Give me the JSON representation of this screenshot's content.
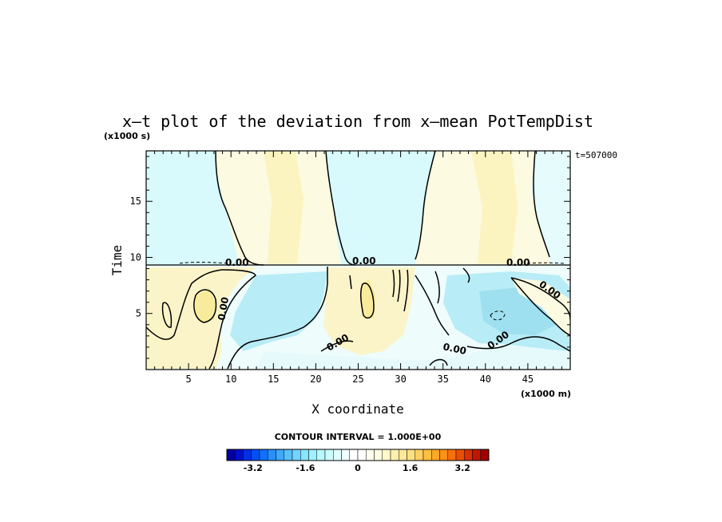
{
  "chart_data": {
    "type": "heatmap",
    "title": "x–t plot of the deviation from x–mean PotTempDist",
    "time_label": "t=507000",
    "xlabel": "X coordinate",
    "ylabel": "Time",
    "x_unit": "(x1000 m)",
    "y_unit": "(x1000 s)",
    "xlim": [
      0,
      50
    ],
    "ylim": [
      0,
      19.5
    ],
    "x_ticks": [
      5,
      10,
      15,
      20,
      25,
      30,
      35,
      40,
      45
    ],
    "y_ticks": [
      5,
      10,
      15
    ],
    "contour_interval_text": "CONTOUR INTERVAL = 1.000E+00",
    "contour_labels": [
      "0.00",
      "0.00",
      "0.00",
      "0.00",
      "0.00",
      "0.00",
      "0.00",
      "0.00"
    ],
    "colorbar": {
      "range": [
        -4,
        4
      ],
      "tick_values": [
        -3.2,
        -1.6,
        0,
        1.6,
        3.2
      ],
      "tick_labels": [
        "-3.2",
        "-1.6",
        "0",
        "1.6",
        "3.2"
      ],
      "colors": [
        "#0000a0",
        "#0010c8",
        "#0030e6",
        "#0050f5",
        "#1070ff",
        "#2a90ff",
        "#40a8ff",
        "#58c0ff",
        "#70d4ff",
        "#88e4ff",
        "#a0f0ff",
        "#b8f8ff",
        "#ccfcff",
        "#e0ffff",
        "#f0ffff",
        "#ffffff",
        "#ffffff",
        "#fffff0",
        "#fffde0",
        "#fff8c8",
        "#fff0b0",
        "#ffe898",
        "#ffe080",
        "#ffd060",
        "#ffc040",
        "#ffa828",
        "#ff9018",
        "#f87008",
        "#e85000",
        "#d83000",
        "#c01800",
        "#a00000"
      ]
    }
  },
  "colors": {
    "light_cyan": "#d8fafc",
    "cyan": "#b8ecf6",
    "light_yellow": "#fcfae0",
    "yellow": "#fbf4c0",
    "near_white": "#f4fcfc"
  }
}
